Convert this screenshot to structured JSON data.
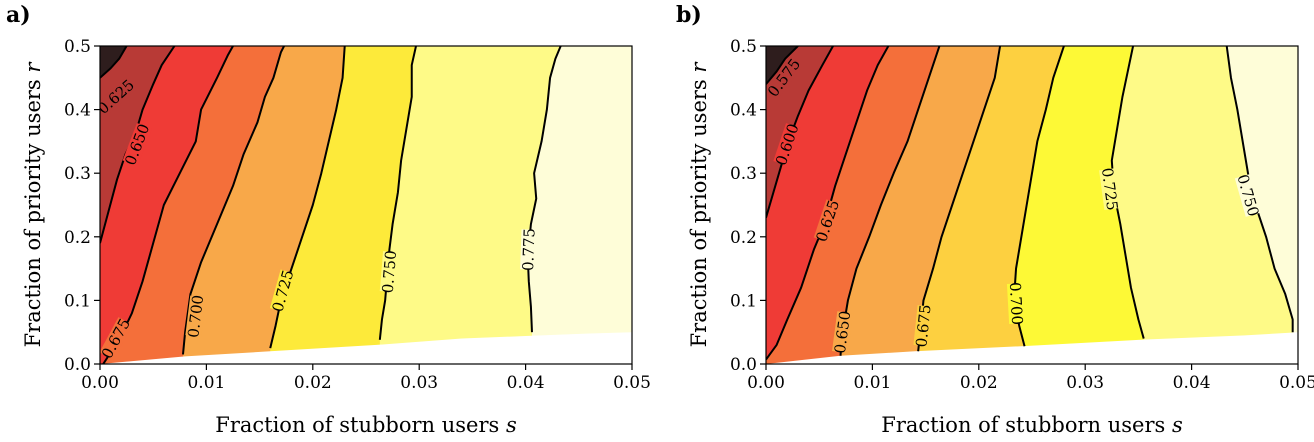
{
  "chart_data": [
    {
      "type": "contour",
      "panel_label": "a)",
      "xlabel": "Fraction of stubborn users s",
      "xlabel_main": "Fraction of stubborn users ",
      "xlabel_var": "s",
      "ylabel_main": "Fraction of priority users ",
      "ylabel_var": "r",
      "xlim": [
        0,
        0.05
      ],
      "ylim": [
        0,
        0.5
      ],
      "xticks": [
        "0.00",
        "0.01",
        "0.02",
        "0.03",
        "0.04",
        "0.05"
      ],
      "yticks": [
        "0.0",
        "0.1",
        "0.2",
        "0.3",
        "0.4",
        "0.5"
      ],
      "contours": [
        {
          "level": "0.625",
          "label_at": [
            0.0015,
            0.42
          ],
          "points": [
            [
              0.0,
              0.45
            ],
            [
              0.001,
              0.465
            ],
            [
              0.0018,
              0.48
            ],
            [
              0.0025,
              0.5
            ]
          ]
        },
        {
          "level": "0.650",
          "label_at": [
            0.0035,
            0.345
          ],
          "points": [
            [
              0.0,
              0.19
            ],
            [
              0.0008,
              0.24
            ],
            [
              0.0016,
              0.29
            ],
            [
              0.0024,
              0.33
            ],
            [
              0.0033,
              0.36
            ],
            [
              0.004,
              0.4
            ],
            [
              0.005,
              0.44
            ],
            [
              0.0058,
              0.47
            ],
            [
              0.007,
              0.5
            ]
          ]
        },
        {
          "level": "0.675",
          "label_at": [
            0.0015,
            0.04
          ],
          "points": [
            [
              0.0003,
              0.0
            ],
            [
              0.001,
              0.018
            ],
            [
              0.002,
              0.045
            ],
            [
              0.003,
              0.08
            ],
            [
              0.004,
              0.13
            ],
            [
              0.005,
              0.19
            ],
            [
              0.006,
              0.25
            ],
            [
              0.0075,
              0.3
            ],
            [
              0.009,
              0.35
            ],
            [
              0.0095,
              0.4
            ],
            [
              0.011,
              0.45
            ],
            [
              0.012,
              0.485
            ],
            [
              0.0125,
              0.5
            ]
          ]
        },
        {
          "level": "0.700",
          "label_at": [
            0.009,
            0.075
          ],
          "points": [
            [
              0.0078,
              0.015
            ],
            [
              0.008,
              0.05
            ],
            [
              0.0085,
              0.11
            ],
            [
              0.0095,
              0.16
            ],
            [
              0.011,
              0.22
            ],
            [
              0.0125,
              0.28
            ],
            [
              0.0135,
              0.33
            ],
            [
              0.0148,
              0.38
            ],
            [
              0.0155,
              0.42
            ],
            [
              0.0163,
              0.45
            ],
            [
              0.017,
              0.49
            ],
            [
              0.0173,
              0.5
            ]
          ]
        },
        {
          "level": "0.725",
          "label_at": [
            0.0172,
            0.115
          ],
          "points": [
            [
              0.016,
              0.025
            ],
            [
              0.0165,
              0.06
            ],
            [
              0.017,
              0.1
            ],
            [
              0.018,
              0.15
            ],
            [
              0.019,
              0.2
            ],
            [
              0.02,
              0.25
            ],
            [
              0.0208,
              0.3
            ],
            [
              0.0215,
              0.35
            ],
            [
              0.0222,
              0.4
            ],
            [
              0.0228,
              0.45
            ],
            [
              0.023,
              0.5
            ]
          ]
        },
        {
          "level": "0.750",
          "label_at": [
            0.0272,
            0.145
          ],
          "points": [
            [
              0.0263,
              0.038
            ],
            [
              0.0265,
              0.07
            ],
            [
              0.0268,
              0.1
            ],
            [
              0.027,
              0.14
            ],
            [
              0.0272,
              0.18
            ],
            [
              0.0275,
              0.22
            ],
            [
              0.028,
              0.27
            ],
            [
              0.0283,
              0.32
            ],
            [
              0.0288,
              0.37
            ],
            [
              0.0293,
              0.42
            ],
            [
              0.0293,
              0.47
            ],
            [
              0.0297,
              0.5
            ]
          ]
        },
        {
          "level": "0.775",
          "label_at": [
            0.0403,
            0.18
          ],
          "points": [
            [
              0.0406,
              0.05
            ],
            [
              0.0405,
              0.09
            ],
            [
              0.0403,
              0.13
            ],
            [
              0.0402,
              0.17
            ],
            [
              0.0405,
              0.22
            ],
            [
              0.041,
              0.26
            ],
            [
              0.0408,
              0.3
            ],
            [
              0.0415,
              0.35
            ],
            [
              0.042,
              0.4
            ],
            [
              0.0423,
              0.45
            ],
            [
              0.0428,
              0.48
            ],
            [
              0.0433,
              0.5
            ]
          ]
        }
      ],
      "bottom_boundary": [
        [
          0.0,
          0.0
        ],
        [
          0.008,
          0.012
        ],
        [
          0.016,
          0.02
        ],
        [
          0.026,
          0.03
        ],
        [
          0.034,
          0.04
        ],
        [
          0.04,
          0.044
        ],
        [
          0.046,
          0.048
        ],
        [
          0.05,
          0.05
        ]
      ],
      "colors": [
        "#2e1d1d",
        "#b83a36",
        "#ef3b36",
        "#f46f3a",
        "#f8a849",
        "#fdea3a",
        "#fefa87",
        "#fefdd8"
      ]
    },
    {
      "type": "contour",
      "panel_label": "b)",
      "xlabel": "Fraction of stubborn users s",
      "xlabel_main": "Fraction of stubborn users ",
      "xlabel_var": "s",
      "ylabel_main": "Fraction of priority users ",
      "ylabel_var": "r",
      "xlim": [
        0,
        0.05
      ],
      "ylim": [
        0,
        0.5
      ],
      "xticks": [
        "0.00",
        "0.01",
        "0.02",
        "0.03",
        "0.04",
        "0.05"
      ],
      "yticks": [
        "0.0",
        "0.1",
        "0.2",
        "0.3",
        "0.4",
        "0.5"
      ],
      "contours": [
        {
          "level": "0.575",
          "label_at": [
            0.0017,
            0.45
          ],
          "points": [
            [
              0.0,
              0.44
            ],
            [
              0.001,
              0.46
            ],
            [
              0.0018,
              0.48
            ],
            [
              0.003,
              0.5
            ]
          ]
        },
        {
          "level": "0.600",
          "label_at": [
            0.002,
            0.345
          ],
          "points": [
            [
              0.0,
              0.23
            ],
            [
              0.0007,
              0.27
            ],
            [
              0.0014,
              0.31
            ],
            [
              0.0021,
              0.35
            ],
            [
              0.003,
              0.39
            ],
            [
              0.004,
              0.43
            ],
            [
              0.0053,
              0.47
            ],
            [
              0.0063,
              0.5
            ]
          ]
        },
        {
          "level": "0.625",
          "label_at": [
            0.0058,
            0.225
          ],
          "points": [
            [
              0.0,
              0.007
            ],
            [
              0.001,
              0.03
            ],
            [
              0.002,
              0.07
            ],
            [
              0.0033,
              0.12
            ],
            [
              0.0045,
              0.18
            ],
            [
              0.0055,
              0.22
            ],
            [
              0.0065,
              0.28
            ],
            [
              0.0075,
              0.33
            ],
            [
              0.0085,
              0.38
            ],
            [
              0.0095,
              0.43
            ],
            [
              0.0105,
              0.47
            ],
            [
              0.0115,
              0.5
            ]
          ]
        },
        {
          "level": "0.650",
          "label_at": [
            0.0072,
            0.05
          ],
          "points": [
            [
              0.007,
              0.013
            ],
            [
              0.0072,
              0.05
            ],
            [
              0.0077,
              0.1
            ],
            [
              0.0085,
              0.15
            ],
            [
              0.0097,
              0.2
            ],
            [
              0.0108,
              0.25
            ],
            [
              0.012,
              0.3
            ],
            [
              0.0133,
              0.35
            ],
            [
              0.0143,
              0.4
            ],
            [
              0.0153,
              0.45
            ],
            [
              0.0163,
              0.5
            ]
          ]
        },
        {
          "level": "0.675",
          "label_at": [
            0.0148,
            0.06
          ],
          "points": [
            [
              0.0143,
              0.02
            ],
            [
              0.0145,
              0.05
            ],
            [
              0.0148,
              0.1
            ],
            [
              0.0157,
              0.15
            ],
            [
              0.0165,
              0.2
            ],
            [
              0.0175,
              0.25
            ],
            [
              0.0185,
              0.3
            ],
            [
              0.0195,
              0.35
            ],
            [
              0.0205,
              0.4
            ],
            [
              0.0215,
              0.45
            ],
            [
              0.022,
              0.5
            ]
          ]
        },
        {
          "level": "0.700",
          "label_at": [
            0.0235,
            0.095
          ],
          "points": [
            [
              0.0243,
              0.028
            ],
            [
              0.0238,
              0.06
            ],
            [
              0.0233,
              0.1
            ],
            [
              0.0235,
              0.15
            ],
            [
              0.024,
              0.2
            ],
            [
              0.0245,
              0.25
            ],
            [
              0.025,
              0.3
            ],
            [
              0.0255,
              0.35
            ],
            [
              0.0263,
              0.4
            ],
            [
              0.027,
              0.45
            ],
            [
              0.028,
              0.5
            ]
          ]
        },
        {
          "level": "0.725",
          "label_at": [
            0.0323,
            0.275
          ],
          "points": [
            [
              0.0355,
              0.04
            ],
            [
              0.035,
              0.07
            ],
            [
              0.0343,
              0.12
            ],
            [
              0.0338,
              0.17
            ],
            [
              0.0333,
              0.22
            ],
            [
              0.0327,
              0.27
            ],
            [
              0.0325,
              0.32
            ],
            [
              0.033,
              0.37
            ],
            [
              0.0335,
              0.42
            ],
            [
              0.034,
              0.46
            ],
            [
              0.0345,
              0.5
            ]
          ]
        },
        {
          "level": "0.750",
          "label_at": [
            0.0453,
            0.265
          ],
          "points": [
            [
              0.0495,
              0.05
            ],
            [
              0.0495,
              0.07
            ],
            [
              0.0488,
              0.11
            ],
            [
              0.0478,
              0.15
            ],
            [
              0.047,
              0.2
            ],
            [
              0.046,
              0.25
            ],
            [
              0.0453,
              0.3
            ],
            [
              0.0448,
              0.35
            ],
            [
              0.0443,
              0.4
            ],
            [
              0.0437,
              0.45
            ],
            [
              0.0433,
              0.5
            ]
          ]
        }
      ],
      "bottom_boundary": [
        [
          0.0,
          0.0
        ],
        [
          0.007,
          0.013
        ],
        [
          0.014,
          0.02
        ],
        [
          0.024,
          0.028
        ],
        [
          0.035,
          0.038
        ],
        [
          0.045,
          0.045
        ],
        [
          0.05,
          0.05
        ]
      ],
      "colors": [
        "#2e1d1d",
        "#b83a36",
        "#ef3b36",
        "#f46f3a",
        "#f8a849",
        "#fdd040",
        "#fdf936",
        "#fefa87",
        "#fefdd8"
      ]
    }
  ]
}
